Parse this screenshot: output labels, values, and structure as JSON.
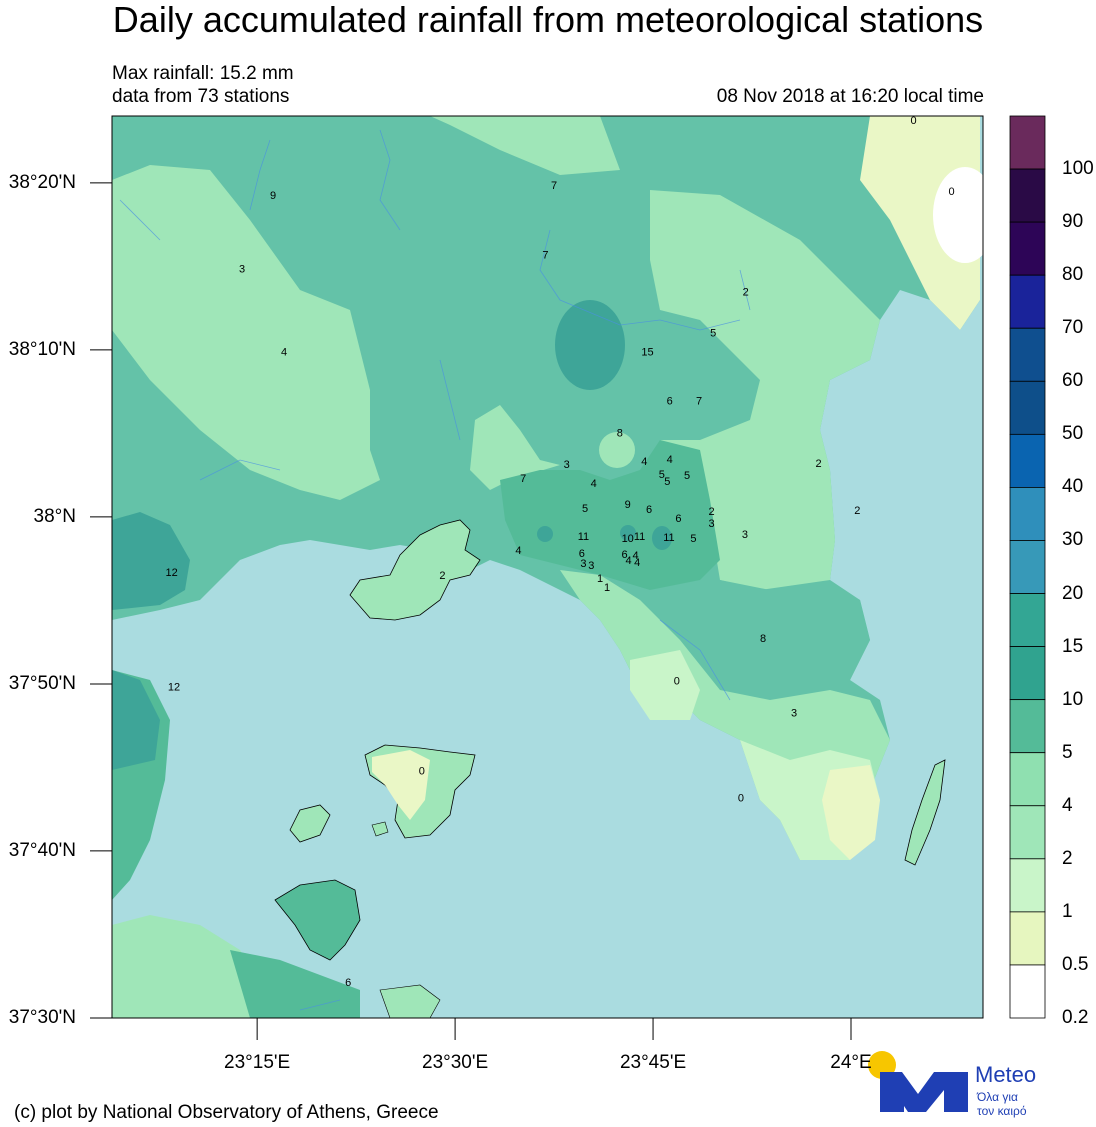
{
  "title": "Daily accumulated rainfall from meteorological stations",
  "max_rainfall": "Max rainfall: 15.2 mm",
  "stations_info": "data from 73 stations",
  "timestamp": "08 Nov 2018 at 16:20 local time",
  "credit": "(c) plot by National Observatory of Athens, Greece",
  "logo": {
    "name": "Meteo",
    "tagline1": "Όλα για",
    "tagline2": "τον καιρό"
  },
  "lat_labels": [
    "38°20'N",
    "38°10'N",
    "38°N",
    "37°50'N",
    "37°40'N",
    "37°30'N"
  ],
  "lon_labels": [
    "23°15'E",
    "23°30'E",
    "23°45'E",
    "24°E"
  ],
  "colorbar": {
    "labels": [
      "100",
      "90",
      "80",
      "70",
      "60",
      "50",
      "40",
      "30",
      "20",
      "15",
      "10",
      "5",
      "4",
      "2",
      "1",
      "0.5",
      "0.2"
    ],
    "colors": [
      "#6a2a5c",
      "#2a0a46",
      "#2d0557",
      "#1a239a",
      "#0f4f8f",
      "#0e4f8a",
      "#0a64b0",
      "#2f8fbb",
      "#3799b8",
      "#33a694",
      "#30a38f",
      "#54bb98",
      "#8fe0b0",
      "#9fe6b8",
      "#c9f5c9",
      "#e6f6bf",
      "#ffffff"
    ]
  },
  "stations": [
    {
      "lon": 23.27,
      "lat": 38.321,
      "v": "9"
    },
    {
      "lon": 23.625,
      "lat": 38.331,
      "v": "7"
    },
    {
      "lon": 23.614,
      "lat": 38.262,
      "v": "7"
    },
    {
      "lon": 23.231,
      "lat": 38.248,
      "v": "3"
    },
    {
      "lon": 23.867,
      "lat": 38.225,
      "v": "2"
    },
    {
      "lon": 23.826,
      "lat": 38.184,
      "v": "5"
    },
    {
      "lon": 23.284,
      "lat": 38.165,
      "v": "4"
    },
    {
      "lon": 23.743,
      "lat": 38.165,
      "v": "15"
    },
    {
      "lon": 23.771,
      "lat": 38.116,
      "v": "6"
    },
    {
      "lon": 23.808,
      "lat": 38.116,
      "v": "7"
    },
    {
      "lon": 23.708,
      "lat": 38.084,
      "v": "8"
    },
    {
      "lon": 23.771,
      "lat": 38.058,
      "v": "4"
    },
    {
      "lon": 23.739,
      "lat": 38.056,
      "v": "4"
    },
    {
      "lon": 23.641,
      "lat": 38.053,
      "v": "3"
    },
    {
      "lon": 23.959,
      "lat": 38.054,
      "v": "2"
    },
    {
      "lon": 23.761,
      "lat": 38.043,
      "v": "5"
    },
    {
      "lon": 23.793,
      "lat": 38.042,
      "v": "5"
    },
    {
      "lon": 23.768,
      "lat": 38.036,
      "v": "5"
    },
    {
      "lon": 23.586,
      "lat": 38.039,
      "v": "7"
    },
    {
      "lon": 23.675,
      "lat": 38.034,
      "v": "4"
    },
    {
      "lon": 23.718,
      "lat": 38.013,
      "v": "9"
    },
    {
      "lon": 23.664,
      "lat": 38.009,
      "v": "5"
    },
    {
      "lon": 23.745,
      "lat": 38.008,
      "v": "6"
    },
    {
      "lon": 23.824,
      "lat": 38.006,
      "v": "2"
    },
    {
      "lon": 24.008,
      "lat": 38.007,
      "v": "2"
    },
    {
      "lon": 23.782,
      "lat": 37.999,
      "v": "6"
    },
    {
      "lon": 23.824,
      "lat": 37.994,
      "v": "3"
    },
    {
      "lon": 23.662,
      "lat": 37.981,
      "v": "11"
    },
    {
      "lon": 23.733,
      "lat": 37.981,
      "v": "11"
    },
    {
      "lon": 23.77,
      "lat": 37.98,
      "v": "11"
    },
    {
      "lon": 23.718,
      "lat": 37.979,
      "v": "10"
    },
    {
      "lon": 23.866,
      "lat": 37.983,
      "v": "3"
    },
    {
      "lon": 23.801,
      "lat": 37.979,
      "v": "5"
    },
    {
      "lon": 23.58,
      "lat": 37.967,
      "v": "4"
    },
    {
      "lon": 23.66,
      "lat": 37.964,
      "v": "6"
    },
    {
      "lon": 23.714,
      "lat": 37.963,
      "v": "6"
    },
    {
      "lon": 23.728,
      "lat": 37.962,
      "v": "4"
    },
    {
      "lon": 23.719,
      "lat": 37.957,
      "v": "4"
    },
    {
      "lon": 23.73,
      "lat": 37.955,
      "v": "4"
    },
    {
      "lon": 23.662,
      "lat": 37.954,
      "v": "3"
    },
    {
      "lon": 23.672,
      "lat": 37.952,
      "v": "3"
    },
    {
      "lon": 23.683,
      "lat": 37.939,
      "v": "1"
    },
    {
      "lon": 23.692,
      "lat": 37.93,
      "v": "1"
    },
    {
      "lon": 23.142,
      "lat": 37.945,
      "v": "12"
    },
    {
      "lon": 23.484,
      "lat": 37.942,
      "v": "2"
    },
    {
      "lon": 23.889,
      "lat": 37.879,
      "v": "8"
    },
    {
      "lon": 23.145,
      "lat": 37.831,
      "v": "12"
    },
    {
      "lon": 23.78,
      "lat": 37.837,
      "v": "0"
    },
    {
      "lon": 23.928,
      "lat": 37.805,
      "v": "3"
    },
    {
      "lon": 23.458,
      "lat": 37.747,
      "v": "0"
    },
    {
      "lon": 23.861,
      "lat": 37.72,
      "v": "0"
    },
    {
      "lon": 24.127,
      "lat": 38.325,
      "v": "0"
    },
    {
      "lon": 24.079,
      "lat": 38.396,
      "v": "0"
    },
    {
      "lon": 23.365,
      "lat": 37.536,
      "v": "6"
    }
  ]
}
